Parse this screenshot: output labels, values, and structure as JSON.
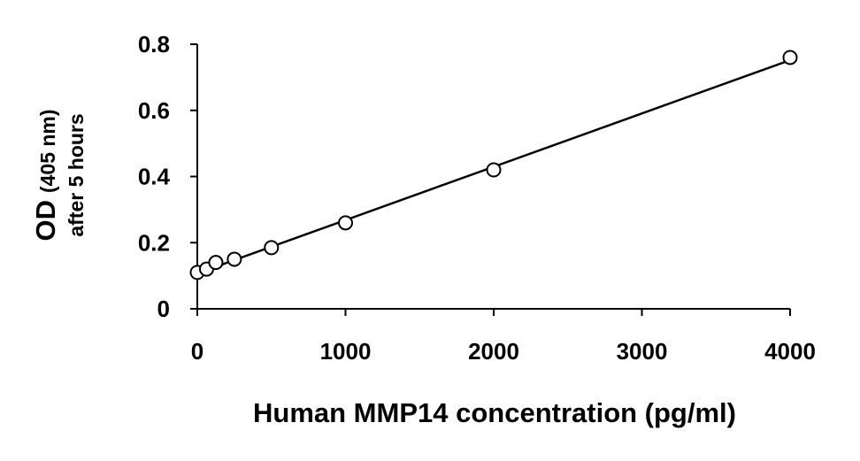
{
  "chart_data": {
    "type": "scatter",
    "title": "",
    "xlabel": "Human MMP14 concentration (pg/ml)",
    "ylabel": {
      "line1_main": "OD",
      "line1_sub": "(405 nm)",
      "line2": "after 5 hours"
    },
    "xlim": [
      0,
      4000
    ],
    "ylim": [
      0,
      0.8
    ],
    "x_ticks": [
      0,
      1000,
      2000,
      3000,
      4000
    ],
    "x_tick_labels": [
      "0",
      "1000",
      "2000",
      "3000",
      "4000"
    ],
    "y_ticks": [
      0,
      0.2,
      0.4,
      0.6,
      0.8
    ],
    "y_tick_labels": [
      "0",
      "0.2",
      "0.4",
      "0.6",
      "0.8"
    ],
    "grid": false,
    "legend": "none",
    "series": [
      {
        "marker": "open-circle",
        "x": [
          0,
          62.5,
          125,
          250,
          500,
          1000,
          2000,
          4000
        ],
        "y": [
          0.11,
          0.12,
          0.14,
          0.15,
          0.185,
          0.26,
          0.42,
          0.76
        ]
      }
    ],
    "trendline": {
      "type": "linear",
      "x": [
        0,
        4000
      ],
      "y": [
        0.107,
        0.752
      ]
    },
    "colors": {
      "axis": "#000000",
      "marker_stroke": "#000000",
      "line": "#000000"
    }
  }
}
